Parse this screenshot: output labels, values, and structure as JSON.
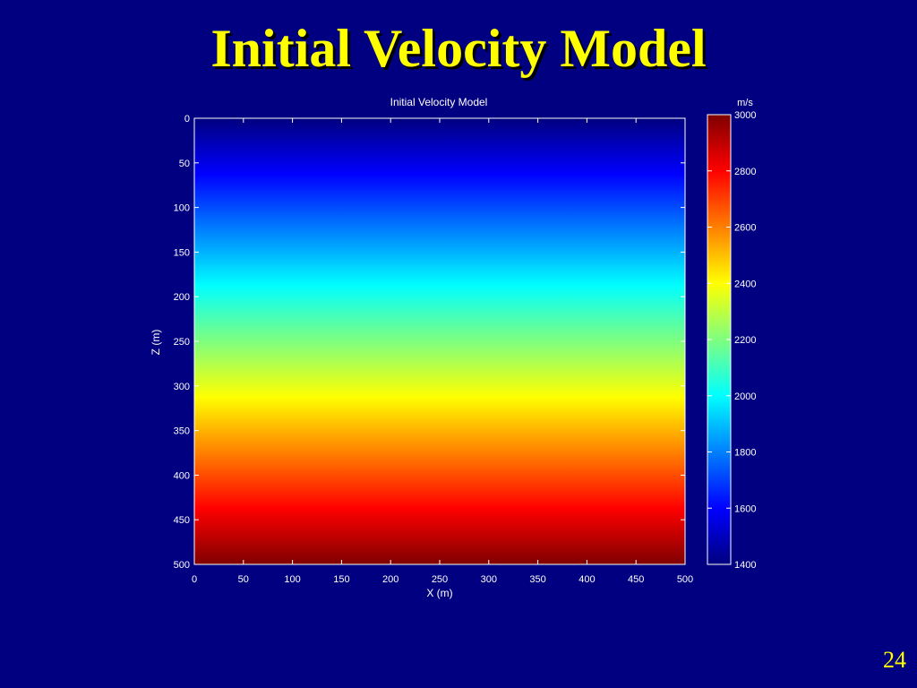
{
  "slide": {
    "title": "Initial Velocity Model",
    "page_number": "24",
    "background_color": "#000080",
    "title_color": "#ffff00"
  },
  "chart_data": {
    "type": "heatmap",
    "title": "Initial Velocity Model",
    "xlabel": "X (m)",
    "ylabel": "Z (m)",
    "xlim": [
      0,
      500
    ],
    "ylim": [
      0,
      500
    ],
    "y_reversed": true,
    "x_ticks": [
      0,
      50,
      100,
      150,
      200,
      250,
      300,
      350,
      400,
      450,
      500
    ],
    "y_ticks": [
      0,
      50,
      100,
      150,
      200,
      250,
      300,
      350,
      400,
      450,
      500
    ],
    "colormap": "jet",
    "field": {
      "description_of_values": "velocity increases linearly with depth Z, constant along X",
      "z": [
        0,
        500
      ],
      "velocity": [
        1400,
        3000
      ]
    },
    "colorbar": {
      "label": "m/s",
      "range": [
        1400,
        3000
      ],
      "ticks": [
        1400,
        1600,
        1800,
        2000,
        2200,
        2400,
        2600,
        2800,
        3000
      ]
    },
    "grid": false
  }
}
